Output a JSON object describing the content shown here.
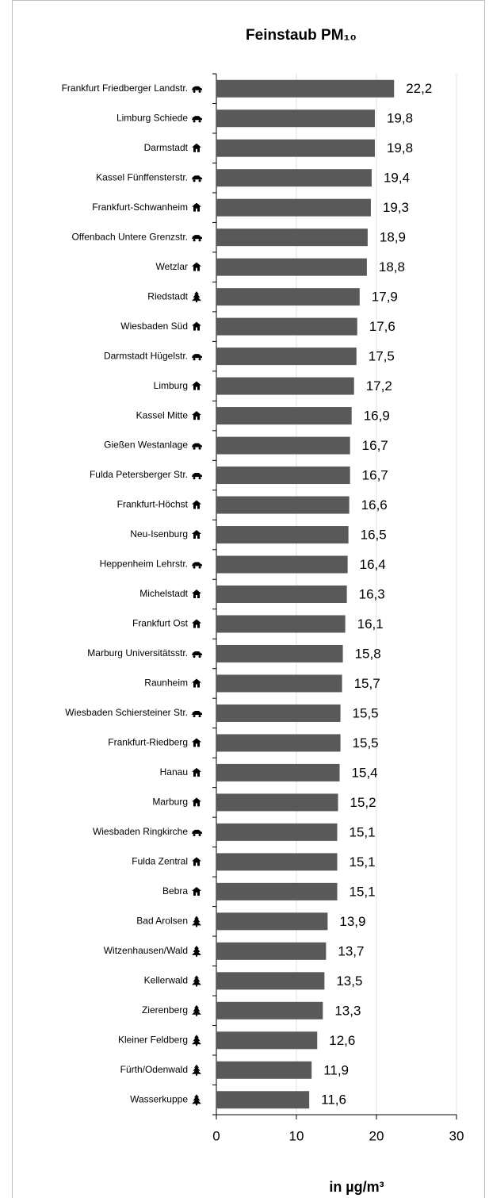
{
  "chart_data": {
    "type": "bar",
    "orientation": "horizontal",
    "title": "Feinstaub PM₁₀",
    "x_axis_label": "in µg/m³",
    "categories": [
      "Frankfurt Friedberger Landstr.",
      "Limburg Schiede",
      "Darmstadt",
      "Kassel Fünffensterstr.",
      "Frankfurt-Schwanheim",
      "Offenbach Untere Grenzstr.",
      "Wetzlar",
      "Riedstadt",
      "Wiesbaden Süd",
      "Darmstadt Hügelstr.",
      "Limburg",
      "Kassel Mitte",
      "Gießen Westanlage",
      "Fulda Petersberger Str.",
      "Frankfurt-Höchst",
      "Neu-Isenburg",
      "Heppenheim Lehrstr.",
      "Michelstadt",
      "Frankfurt Ost",
      "Marburg Universitätsstr.",
      "Raunheim",
      "Wiesbaden Schiersteiner Str.",
      "Frankfurt-Riedberg",
      "Hanau",
      "Marburg",
      "Wiesbaden Ringkirche",
      "Fulda Zentral",
      "Bebra",
      "Bad Arolsen",
      "Witzenhausen/Wald",
      "Kellerwald",
      "Zierenberg",
      "Kleiner Feldberg",
      "Fürth/Odenwald",
      "Wasserkuppe"
    ],
    "values": [
      22.2,
      19.8,
      19.8,
      19.4,
      19.3,
      18.9,
      18.8,
      17.9,
      17.6,
      17.5,
      17.2,
      16.9,
      16.7,
      16.7,
      16.6,
      16.5,
      16.4,
      16.3,
      16.1,
      15.8,
      15.7,
      15.5,
      15.5,
      15.4,
      15.2,
      15.1,
      15.1,
      15.1,
      13.9,
      13.7,
      13.5,
      13.3,
      12.6,
      11.9,
      11.6
    ],
    "value_labels": [
      "22,2",
      "19,8",
      "19,8",
      "19,4",
      "19,3",
      "18,9",
      "18,8",
      "17,9",
      "17,6",
      "17,5",
      "17,2",
      "16,9",
      "16,7",
      "16,7",
      "16,6",
      "16,5",
      "16,4",
      "16,3",
      "16,1",
      "15,8",
      "15,7",
      "15,5",
      "15,5",
      "15,4",
      "15,2",
      "15,1",
      "15,1",
      "15,1",
      "13,9",
      "13,7",
      "13,5",
      "13,3",
      "12,6",
      "11,9",
      "11,6"
    ],
    "color": "#595959",
    "xlim": [
      0,
      30
    ],
    "xticks": [
      0,
      10,
      20,
      30
    ],
    "grid": true
  }
}
